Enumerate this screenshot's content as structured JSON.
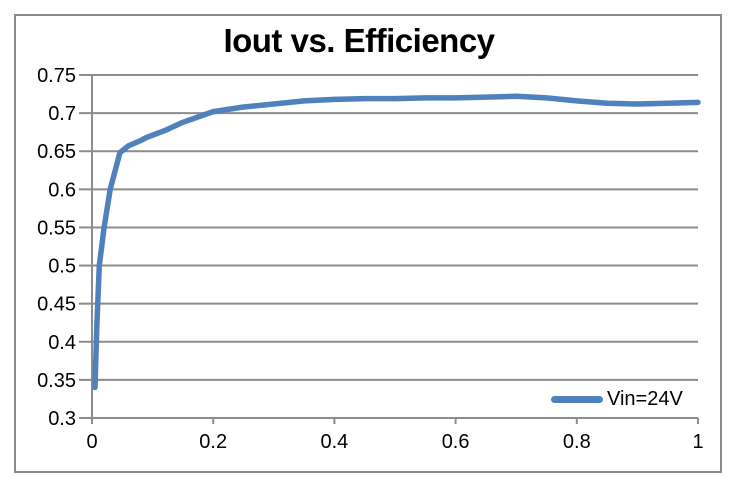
{
  "chart_data": {
    "type": "line",
    "title": "Iout vs. Efficiency",
    "xlabel": "",
    "ylabel": "",
    "xlim": [
      0,
      1
    ],
    "ylim": [
      0.3,
      0.75
    ],
    "grid": true,
    "x_ticks": {
      "values": [
        0,
        0.2,
        0.4,
        0.6,
        0.8,
        1
      ],
      "labels": [
        "0",
        "0.2",
        "0.4",
        "0.6",
        "0.8",
        "1"
      ]
    },
    "y_ticks": {
      "values": [
        0.3,
        0.35,
        0.4,
        0.45,
        0.5,
        0.55,
        0.6,
        0.65,
        0.7,
        0.75
      ],
      "labels": [
        "0.3",
        "0.35",
        "0.4",
        "0.45",
        "0.5",
        "0.55",
        "0.6",
        "0.65",
        "0.7",
        "0.75"
      ]
    },
    "legend": {
      "position": "inside-bottom-right",
      "entries": [
        {
          "label": "Vin=24V",
          "color": "#4f81bd"
        }
      ]
    },
    "series": [
      {
        "name": "Vin=24V",
        "color": "#4f81bd",
        "points": [
          [
            0.005,
            0.34
          ],
          [
            0.008,
            0.42
          ],
          [
            0.012,
            0.5
          ],
          [
            0.02,
            0.55
          ],
          [
            0.03,
            0.6
          ],
          [
            0.046,
            0.648
          ],
          [
            0.06,
            0.657
          ],
          [
            0.08,
            0.664
          ],
          [
            0.09,
            0.668
          ],
          [
            0.12,
            0.677
          ],
          [
            0.15,
            0.688
          ],
          [
            0.2,
            0.702
          ],
          [
            0.25,
            0.708
          ],
          [
            0.3,
            0.712
          ],
          [
            0.35,
            0.716
          ],
          [
            0.4,
            0.718
          ],
          [
            0.45,
            0.719
          ],
          [
            0.5,
            0.719
          ],
          [
            0.55,
            0.72
          ],
          [
            0.6,
            0.72
          ],
          [
            0.65,
            0.721
          ],
          [
            0.7,
            0.722
          ],
          [
            0.75,
            0.72
          ],
          [
            0.8,
            0.716
          ],
          [
            0.85,
            0.713
          ],
          [
            0.9,
            0.712
          ],
          [
            0.95,
            0.713
          ],
          [
            1.0,
            0.714
          ]
        ]
      }
    ],
    "colors": {
      "series_line": "#4f81bd",
      "gridline": "#8c8c8c",
      "axis": "#8c8c8c",
      "chart_border": "#8a8a8a",
      "title_text": "#000000",
      "tick_label_text": "#000000"
    }
  }
}
